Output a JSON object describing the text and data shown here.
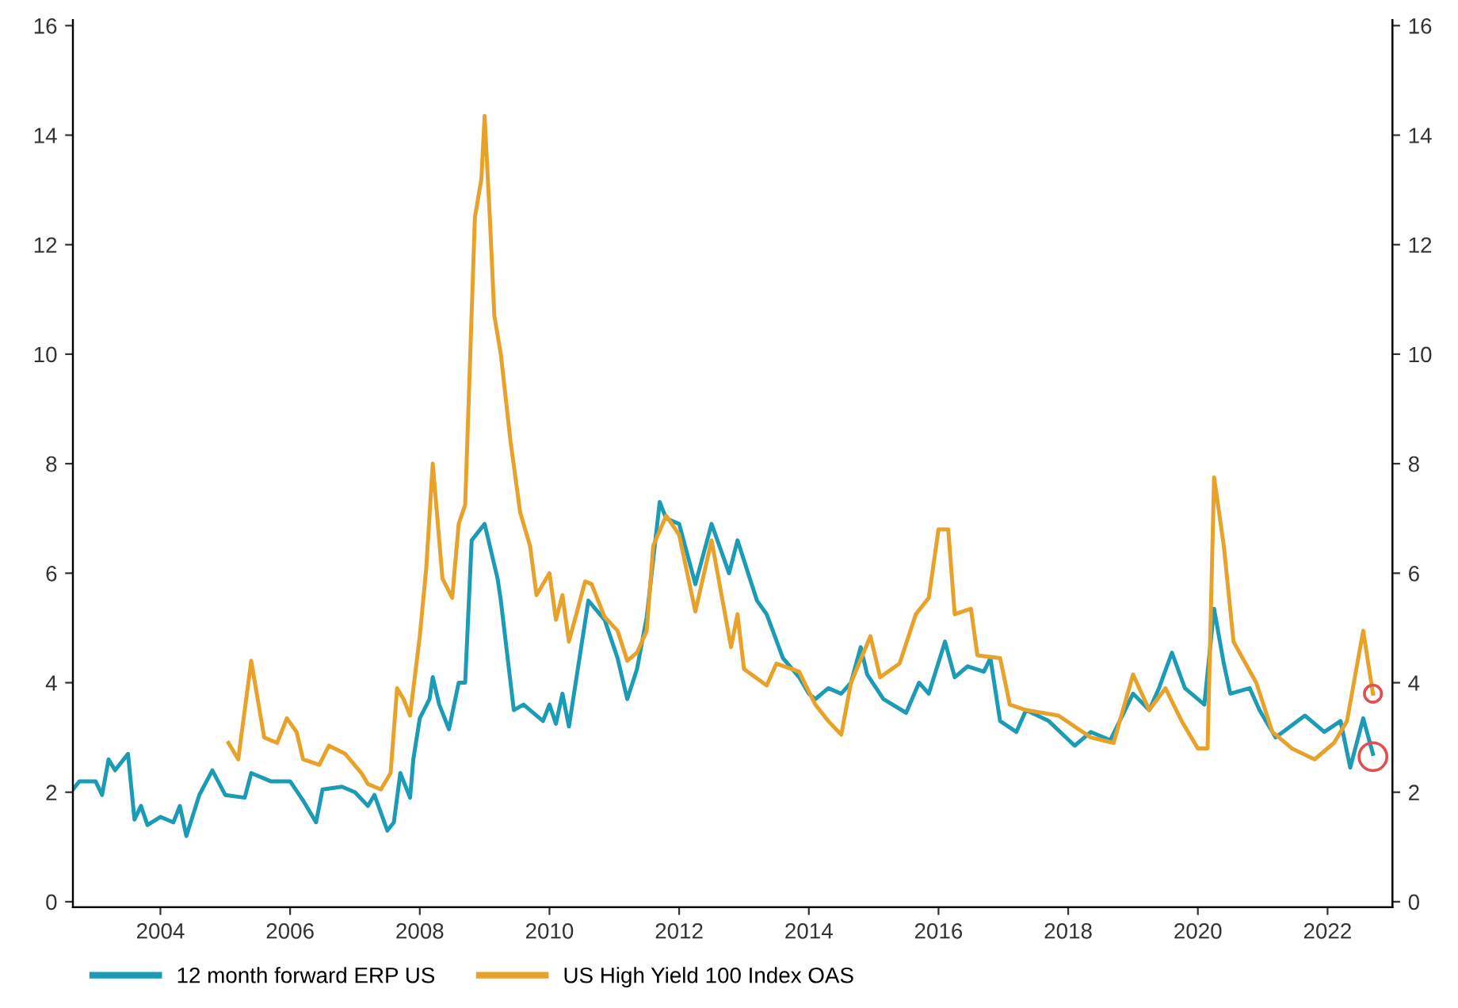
{
  "chart_data": {
    "type": "line",
    "xlim": [
      2002.65,
      2023.0
    ],
    "xticks": [
      2004,
      2006,
      2008,
      2010,
      2012,
      2014,
      2016,
      2018,
      2020,
      2022
    ],
    "ylim": [
      -0.1,
      16.1
    ],
    "yticks": [
      0,
      2,
      4,
      6,
      8,
      10,
      12,
      14,
      16
    ],
    "y2lim": [
      -0.1,
      16.1
    ],
    "y2ticks": [
      0,
      2,
      4,
      6,
      8,
      10,
      12,
      14,
      16
    ],
    "grid": false,
    "legend": "bottom",
    "marker": "none",
    "line_style": "solid",
    "series": [
      {
        "name": "12 month forward ERP US",
        "color": "#1b9bb5",
        "x": [
          2002.65,
          2002.75,
          2003.0,
          2003.1,
          2003.2,
          2003.3,
          2003.5,
          2003.6,
          2003.7,
          2003.8,
          2004.0,
          2004.2,
          2004.3,
          2004.4,
          2004.6,
          2004.8,
          2005.0,
          2005.3,
          2005.4,
          2005.7,
          2006.0,
          2006.2,
          2006.4,
          2006.5,
          2006.8,
          2007.0,
          2007.2,
          2007.3,
          2007.5,
          2007.6,
          2007.7,
          2007.85,
          2007.9,
          2008.0,
          2008.15,
          2008.2,
          2008.3,
          2008.45,
          2008.6,
          2008.7,
          2008.8,
          2009.0,
          2009.2,
          2009.25,
          2009.45,
          2009.6,
          2009.9,
          2010.0,
          2010.1,
          2010.2,
          2010.3,
          2010.6,
          2010.85,
          2011.05,
          2011.2,
          2011.35,
          2011.5,
          2011.7,
          2011.8,
          2012.0,
          2012.25,
          2012.5,
          2012.77,
          2012.9,
          2013.2,
          2013.35,
          2013.6,
          2013.85,
          2014.0,
          2014.1,
          2014.3,
          2014.5,
          2014.65,
          2014.8,
          2014.9,
          2015.15,
          2015.5,
          2015.7,
          2015.85,
          2016.1,
          2016.25,
          2016.45,
          2016.7,
          2016.8,
          2016.95,
          2017.2,
          2017.35,
          2017.7,
          2018.1,
          2018.35,
          2018.65,
          2019.0,
          2019.25,
          2019.4,
          2019.6,
          2019.8,
          2020.1,
          2020.25,
          2020.4,
          2020.5,
          2020.8,
          2020.95,
          2021.2,
          2021.65,
          2021.95,
          2022.2,
          2022.35,
          2022.55,
          2022.7
        ],
        "values": [
          2.05,
          2.2,
          2.2,
          1.95,
          2.6,
          2.4,
          2.7,
          1.5,
          1.75,
          1.4,
          1.55,
          1.45,
          1.75,
          1.2,
          1.95,
          2.4,
          1.95,
          1.9,
          2.35,
          2.2,
          2.2,
          1.85,
          1.45,
          2.05,
          2.1,
          2.0,
          1.75,
          1.95,
          1.3,
          1.45,
          2.35,
          1.9,
          2.6,
          3.35,
          3.7,
          4.1,
          3.6,
          3.15,
          4.0,
          4.0,
          6.6,
          6.9,
          5.9,
          5.5,
          3.5,
          3.6,
          3.3,
          3.6,
          3.25,
          3.8,
          3.2,
          5.5,
          5.15,
          4.45,
          3.7,
          4.25,
          5.2,
          7.3,
          7.0,
          6.9,
          5.8,
          6.9,
          6.0,
          6.6,
          5.5,
          5.25,
          4.45,
          4.1,
          3.8,
          3.7,
          3.9,
          3.8,
          4.0,
          4.65,
          4.15,
          3.7,
          3.45,
          4.0,
          3.8,
          4.75,
          4.1,
          4.3,
          4.2,
          4.45,
          3.3,
          3.1,
          3.5,
          3.3,
          2.85,
          3.1,
          2.95,
          3.8,
          3.5,
          3.9,
          4.55,
          3.9,
          3.6,
          5.35,
          4.35,
          3.8,
          3.9,
          3.5,
          3.0,
          3.4,
          3.1,
          3.3,
          2.45,
          3.35,
          2.7
        ]
      },
      {
        "name": "US High Yield 100 Index OAS",
        "color": "#e8a22a",
        "x": [
          2005.05,
          2005.2,
          2005.4,
          2005.6,
          2005.8,
          2005.95,
          2006.1,
          2006.2,
          2006.45,
          2006.6,
          2006.85,
          2007.1,
          2007.2,
          2007.4,
          2007.55,
          2007.65,
          2007.75,
          2007.85,
          2008.0,
          2008.1,
          2008.2,
          2008.35,
          2008.5,
          2008.6,
          2008.7,
          2008.85,
          2008.95,
          2009.0,
          2009.08,
          2009.15,
          2009.25,
          2009.4,
          2009.55,
          2009.7,
          2009.8,
          2010.0,
          2010.1,
          2010.2,
          2010.3,
          2010.55,
          2010.65,
          2010.85,
          2011.05,
          2011.2,
          2011.35,
          2011.5,
          2011.6,
          2011.8,
          2012.0,
          2012.25,
          2012.5,
          2012.8,
          2012.9,
          2013.0,
          2013.35,
          2013.5,
          2013.85,
          2014.1,
          2014.3,
          2014.5,
          2014.65,
          2014.95,
          2015.1,
          2015.4,
          2015.65,
          2015.85,
          2016.0,
          2016.15,
          2016.25,
          2016.5,
          2016.6,
          2016.95,
          2017.1,
          2017.35,
          2017.85,
          2018.35,
          2018.7,
          2019.0,
          2019.25,
          2019.5,
          2019.75,
          2020.0,
          2020.15,
          2020.25,
          2020.4,
          2020.55,
          2020.9,
          2021.15,
          2021.45,
          2021.8,
          2022.1,
          2022.3,
          2022.55,
          2022.7
        ],
        "values": [
          2.9,
          2.6,
          4.4,
          3.0,
          2.9,
          3.35,
          3.1,
          2.6,
          2.5,
          2.85,
          2.7,
          2.35,
          2.15,
          2.05,
          2.35,
          3.9,
          3.7,
          3.4,
          4.85,
          6.1,
          8.0,
          5.9,
          5.55,
          6.9,
          7.25,
          12.5,
          13.2,
          14.35,
          12.5,
          10.7,
          10.0,
          8.4,
          7.1,
          6.5,
          5.6,
          6.0,
          5.15,
          5.6,
          4.75,
          5.85,
          5.8,
          5.2,
          4.95,
          4.4,
          4.55,
          4.95,
          6.5,
          7.05,
          6.7,
          5.3,
          6.6,
          4.65,
          5.25,
          4.25,
          3.95,
          4.35,
          4.2,
          3.6,
          3.3,
          3.05,
          4.0,
          4.85,
          4.1,
          4.35,
          5.25,
          5.55,
          6.8,
          6.8,
          5.25,
          5.35,
          4.5,
          4.45,
          3.6,
          3.5,
          3.4,
          3.0,
          2.9,
          4.15,
          3.5,
          3.9,
          3.3,
          2.8,
          2.8,
          7.75,
          6.5,
          4.75,
          4.0,
          3.1,
          2.8,
          2.6,
          2.9,
          3.3,
          4.95,
          3.8
        ]
      },
      {
        "type": "scatter",
        "marker": "circle",
        "color": "#e05050",
        "x": [
          2022.7,
          2022.7
        ],
        "values": [
          3.8,
          2.65
        ]
      }
    ]
  }
}
